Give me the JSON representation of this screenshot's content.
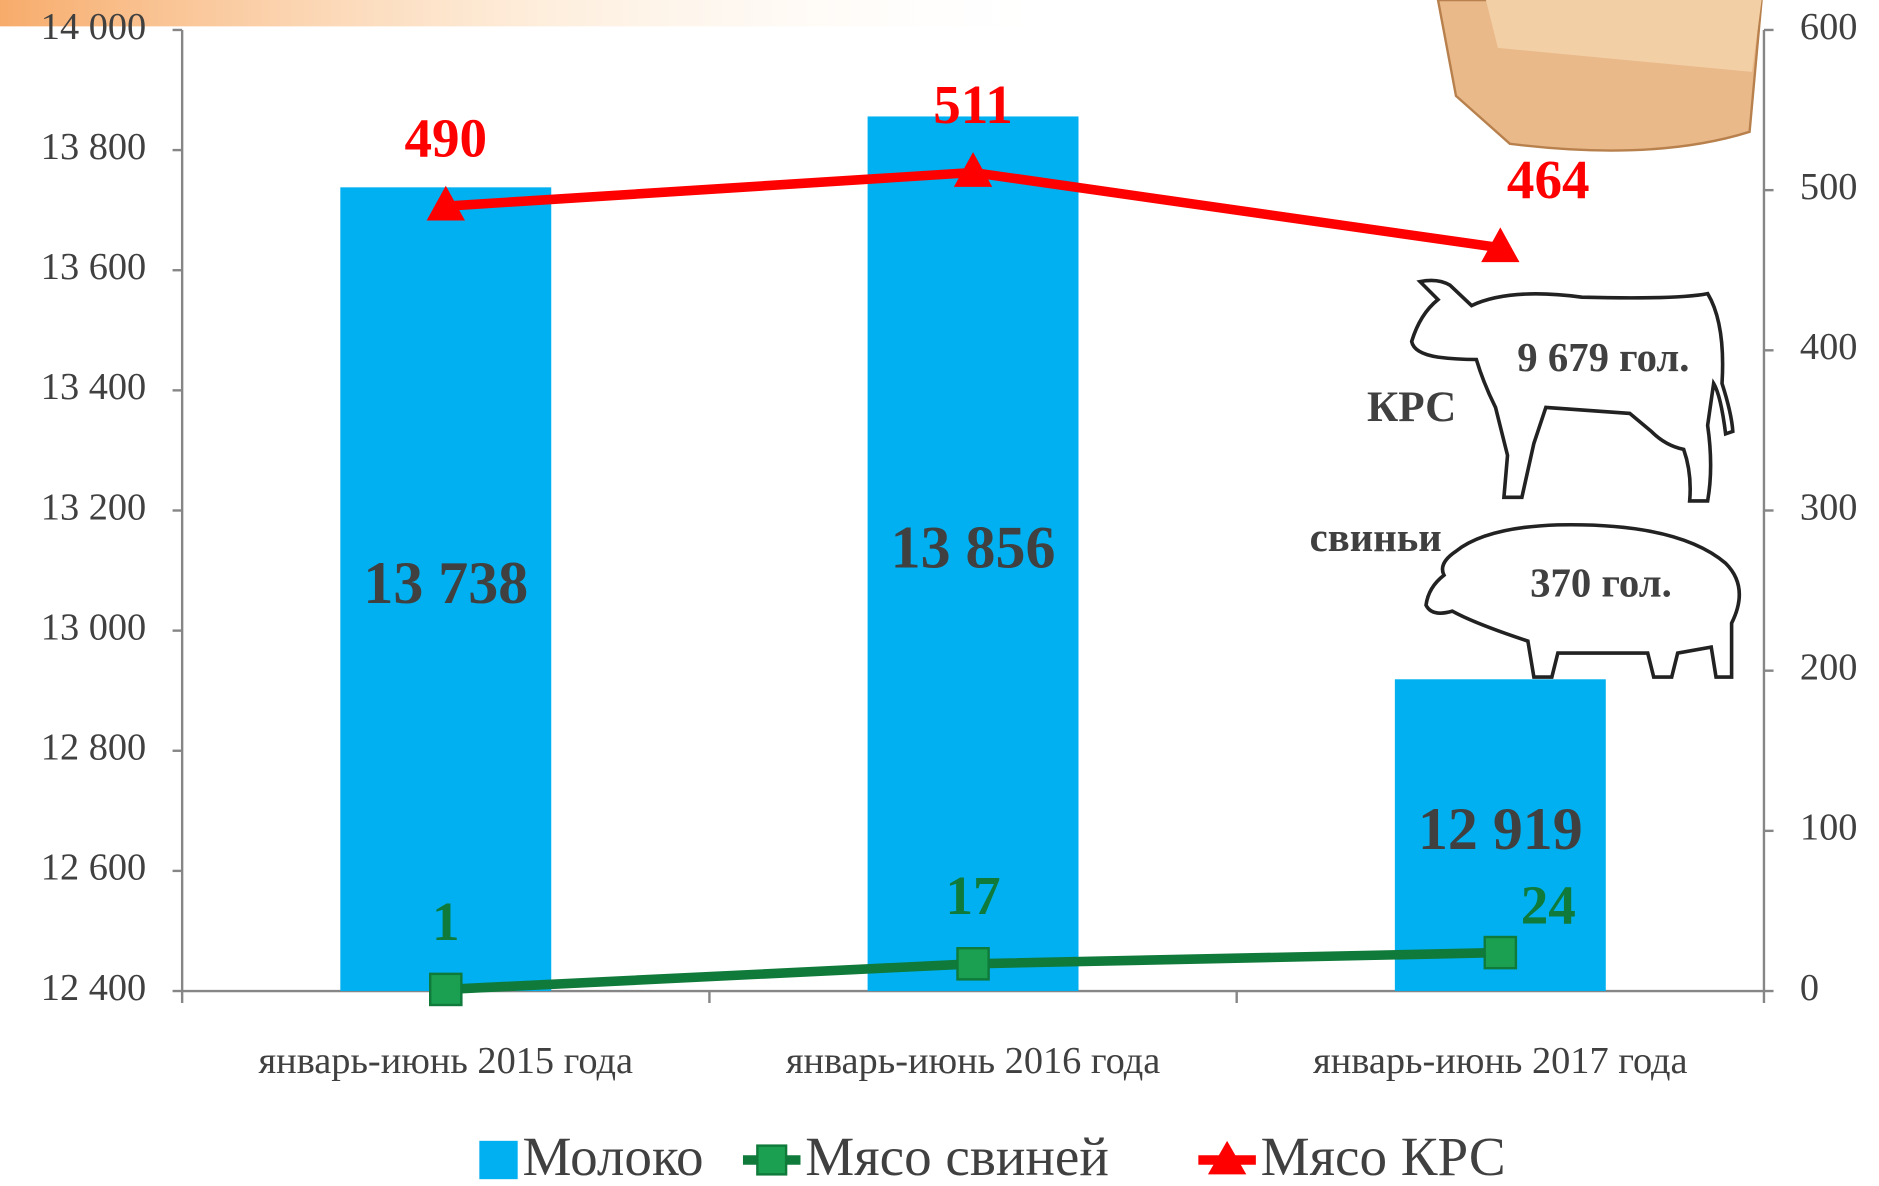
{
  "chart_data": {
    "type": "bar",
    "categories": [
      "январь-июнь 2015 года",
      "январь-июнь 2016 года",
      "январь-июнь 2017 года"
    ],
    "series": [
      {
        "name": "Молоко",
        "type": "bar",
        "color": "#00b0f0",
        "values": [
          13738,
          13856,
          12919
        ],
        "value_labels": [
          "13 738",
          "13 856",
          "12 919"
        ]
      },
      {
        "name": "Мясо свиней",
        "type": "line",
        "marker": "square",
        "axis": "y2",
        "color": "#0f7a3a",
        "values": [
          1,
          17,
          24
        ]
      },
      {
        "name": "Мясо КРС",
        "type": "line",
        "marker": "triangle",
        "axis": "y2",
        "color": "#ff0000",
        "values": [
          490,
          511,
          464
        ]
      }
    ],
    "ylim": [
      12400,
      14000
    ],
    "yticks": [
      {
        "value": 12400,
        "label": "12 400"
      },
      {
        "value": 12600,
        "label": "12 600"
      },
      {
        "value": 12800,
        "label": "12 800"
      },
      {
        "value": 13000,
        "label": "13 000"
      },
      {
        "value": 13200,
        "label": "13 200"
      },
      {
        "value": 13400,
        "label": "13 400"
      },
      {
        "value": 13600,
        "label": "13 600"
      },
      {
        "value": 13800,
        "label": "13 800"
      },
      {
        "value": 14000,
        "label": "14 000"
      }
    ],
    "y2lim": [
      0,
      600
    ],
    "y2ticks": [
      0,
      100,
      200,
      300,
      400,
      500,
      600
    ],
    "legend": "bottom",
    "annotations": [
      "9 679 гол.",
      "КРС",
      "свиньи",
      "370 гол."
    ]
  }
}
